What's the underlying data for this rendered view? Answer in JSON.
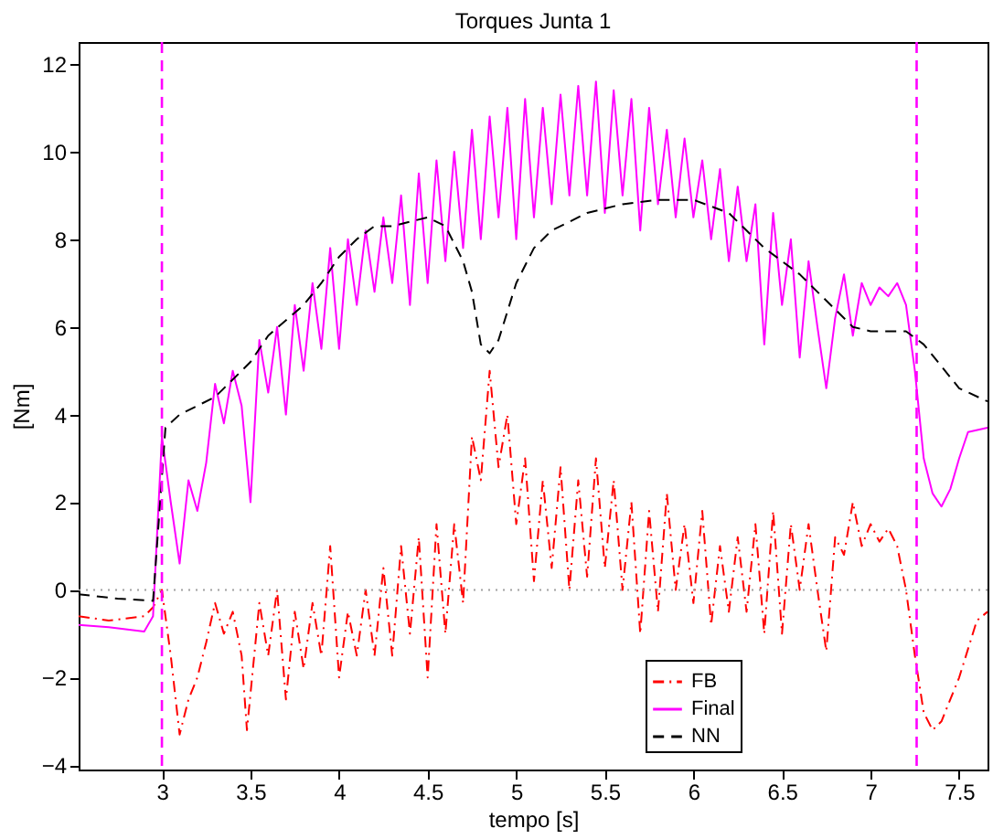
{
  "chart_data": {
    "type": "line",
    "title": "Torques Junta 1",
    "xlabel": "tempo [s]",
    "ylabel": "[Nm]",
    "xlim": [
      2.53,
      7.66
    ],
    "ylim": [
      -4.1,
      12.5
    ],
    "xticks": [
      3,
      3.5,
      4,
      4.5,
      5,
      5.5,
      6,
      6.5,
      7,
      7.5
    ],
    "yticks": [
      -4,
      -2,
      0,
      2,
      4,
      6,
      8,
      10,
      12
    ],
    "grid": false,
    "legend": "bottom",
    "marker": "none",
    "ref_lines": [
      {
        "axis": "x",
        "value": 3,
        "color": "#ff00ff",
        "line_style": "dashed"
      },
      {
        "axis": "x",
        "value": 7.26,
        "color": "#ff00ff",
        "line_style": "dashed"
      },
      {
        "axis": "y",
        "value": 0,
        "color": "#a0a0a0",
        "line_style": "dotted"
      }
    ],
    "series": [
      {
        "name": "FB",
        "color": "#ff0000",
        "line_style": "dashdot",
        "x": [
          2.53,
          2.7,
          2.9,
          2.95,
          3.0,
          3.05,
          3.1,
          3.15,
          3.2,
          3.25,
          3.3,
          3.35,
          3.4,
          3.45,
          3.48,
          3.55,
          3.6,
          3.65,
          3.7,
          3.75,
          3.8,
          3.85,
          3.9,
          3.95,
          4.0,
          4.05,
          4.1,
          4.15,
          4.2,
          4.25,
          4.3,
          4.35,
          4.4,
          4.45,
          4.5,
          4.55,
          4.6,
          4.65,
          4.7,
          4.75,
          4.8,
          4.85,
          4.9,
          4.95,
          5.0,
          5.05,
          5.1,
          5.15,
          5.2,
          5.25,
          5.3,
          5.35,
          5.4,
          5.45,
          5.5,
          5.55,
          5.6,
          5.65,
          5.7,
          5.75,
          5.8,
          5.85,
          5.9,
          5.95,
          6.0,
          6.05,
          6.1,
          6.15,
          6.2,
          6.25,
          6.3,
          6.35,
          6.4,
          6.45,
          6.5,
          6.55,
          6.6,
          6.65,
          6.7,
          6.75,
          6.8,
          6.85,
          6.9,
          6.95,
          7.0,
          7.05,
          7.1,
          7.15,
          7.2,
          7.25,
          7.3,
          7.35,
          7.4,
          7.5,
          7.6,
          7.66
        ],
        "values": [
          -0.6,
          -0.7,
          -0.6,
          -0.4,
          0.0,
          -1.5,
          -3.3,
          -2.5,
          -2.0,
          -1.2,
          -0.3,
          -1.0,
          -0.5,
          -1.5,
          -3.2,
          -0.3,
          -1.5,
          0.0,
          -2.5,
          -0.5,
          -1.8,
          -0.3,
          -1.5,
          1.0,
          -2.0,
          -0.5,
          -1.5,
          0.0,
          -1.5,
          0.5,
          -1.5,
          1.0,
          -1.0,
          1.2,
          -2.0,
          1.5,
          -1.0,
          1.5,
          -0.3,
          3.5,
          2.5,
          5.0,
          2.8,
          4.0,
          1.5,
          3.0,
          0.2,
          2.5,
          0.5,
          2.8,
          0.0,
          2.5,
          0.3,
          3.0,
          0.5,
          2.5,
          0.0,
          2.0,
          -1.0,
          1.8,
          -0.5,
          2.2,
          0.0,
          1.5,
          -0.3,
          1.8,
          -0.8,
          1.0,
          -0.5,
          1.2,
          -0.5,
          1.5,
          -1.0,
          1.8,
          -1.0,
          1.5,
          0.0,
          1.5,
          0.0,
          -1.4,
          1.2,
          0.8,
          2.0,
          1.0,
          1.5,
          1.1,
          1.4,
          1.0,
          0.0,
          -1.5,
          -2.8,
          -3.2,
          -3.0,
          -2.0,
          -0.7,
          -0.5
        ]
      },
      {
        "name": "Final",
        "color": "#ff00ff",
        "line_style": "solid",
        "x": [
          2.53,
          2.7,
          2.9,
          2.95,
          3.0,
          3.05,
          3.1,
          3.15,
          3.2,
          3.25,
          3.3,
          3.35,
          3.4,
          3.45,
          3.5,
          3.55,
          3.6,
          3.65,
          3.7,
          3.75,
          3.8,
          3.85,
          3.9,
          3.95,
          4.0,
          4.05,
          4.1,
          4.15,
          4.2,
          4.25,
          4.3,
          4.35,
          4.4,
          4.45,
          4.5,
          4.55,
          4.6,
          4.65,
          4.7,
          4.75,
          4.8,
          4.85,
          4.9,
          4.95,
          5.0,
          5.05,
          5.1,
          5.15,
          5.2,
          5.25,
          5.3,
          5.35,
          5.4,
          5.45,
          5.5,
          5.55,
          5.6,
          5.65,
          5.7,
          5.75,
          5.8,
          5.85,
          5.9,
          5.95,
          6.0,
          6.05,
          6.1,
          6.15,
          6.2,
          6.25,
          6.3,
          6.35,
          6.4,
          6.45,
          6.5,
          6.55,
          6.6,
          6.65,
          6.7,
          6.75,
          6.8,
          6.85,
          6.9,
          6.95,
          7.0,
          7.05,
          7.1,
          7.15,
          7.2,
          7.25,
          7.3,
          7.35,
          7.4,
          7.45,
          7.5,
          7.55,
          7.66
        ],
        "values": [
          -0.8,
          -0.85,
          -0.95,
          -0.6,
          3.5,
          2.0,
          0.6,
          2.5,
          1.8,
          2.9,
          4.7,
          3.8,
          5.0,
          4.2,
          2.0,
          5.7,
          4.5,
          6.0,
          4.0,
          6.5,
          5.0,
          7.0,
          5.5,
          7.8,
          5.5,
          8.0,
          6.5,
          8.2,
          6.8,
          8.5,
          7.0,
          9.0,
          6.5,
          9.5,
          7.0,
          9.8,
          7.5,
          10.0,
          7.8,
          10.5,
          8.0,
          10.8,
          8.5,
          11.0,
          8.0,
          11.2,
          8.5,
          11.0,
          8.8,
          11.3,
          9.0,
          11.5,
          9.0,
          11.6,
          8.6,
          11.4,
          9.0,
          11.2,
          8.2,
          11.0,
          8.8,
          10.5,
          8.5,
          10.3,
          8.5,
          9.8,
          8.0,
          9.6,
          7.5,
          9.2,
          7.5,
          8.8,
          5.6,
          8.6,
          6.5,
          8.0,
          5.3,
          7.5,
          6.0,
          4.6,
          6.2,
          7.2,
          5.8,
          7.0,
          6.5,
          6.9,
          6.7,
          7.0,
          6.5,
          5.0,
          3.0,
          2.2,
          1.9,
          2.3,
          3.0,
          3.6,
          3.7
        ]
      },
      {
        "name": "NN",
        "color": "#000000",
        "line_style": "dashed",
        "x": [
          2.53,
          2.75,
          2.95,
          3.02,
          3.1,
          3.3,
          3.5,
          3.6,
          3.8,
          3.9,
          4.0,
          4.1,
          4.2,
          4.3,
          4.4,
          4.5,
          4.6,
          4.7,
          4.75,
          4.8,
          4.85,
          4.9,
          5.0,
          5.1,
          5.2,
          5.4,
          5.6,
          5.8,
          6.0,
          6.2,
          6.4,
          6.6,
          6.8,
          6.9,
          7.0,
          7.2,
          7.3,
          7.5,
          7.66
        ],
        "values": [
          -0.1,
          -0.2,
          -0.25,
          3.7,
          4.0,
          4.4,
          5.2,
          5.8,
          6.5,
          7.0,
          7.6,
          8.0,
          8.3,
          8.3,
          8.4,
          8.5,
          8.3,
          7.5,
          6.8,
          5.6,
          5.4,
          5.7,
          7.0,
          7.8,
          8.2,
          8.6,
          8.8,
          8.9,
          8.9,
          8.6,
          7.8,
          7.2,
          6.4,
          6.0,
          5.9,
          5.9,
          5.6,
          4.6,
          4.3
        ]
      }
    ]
  }
}
